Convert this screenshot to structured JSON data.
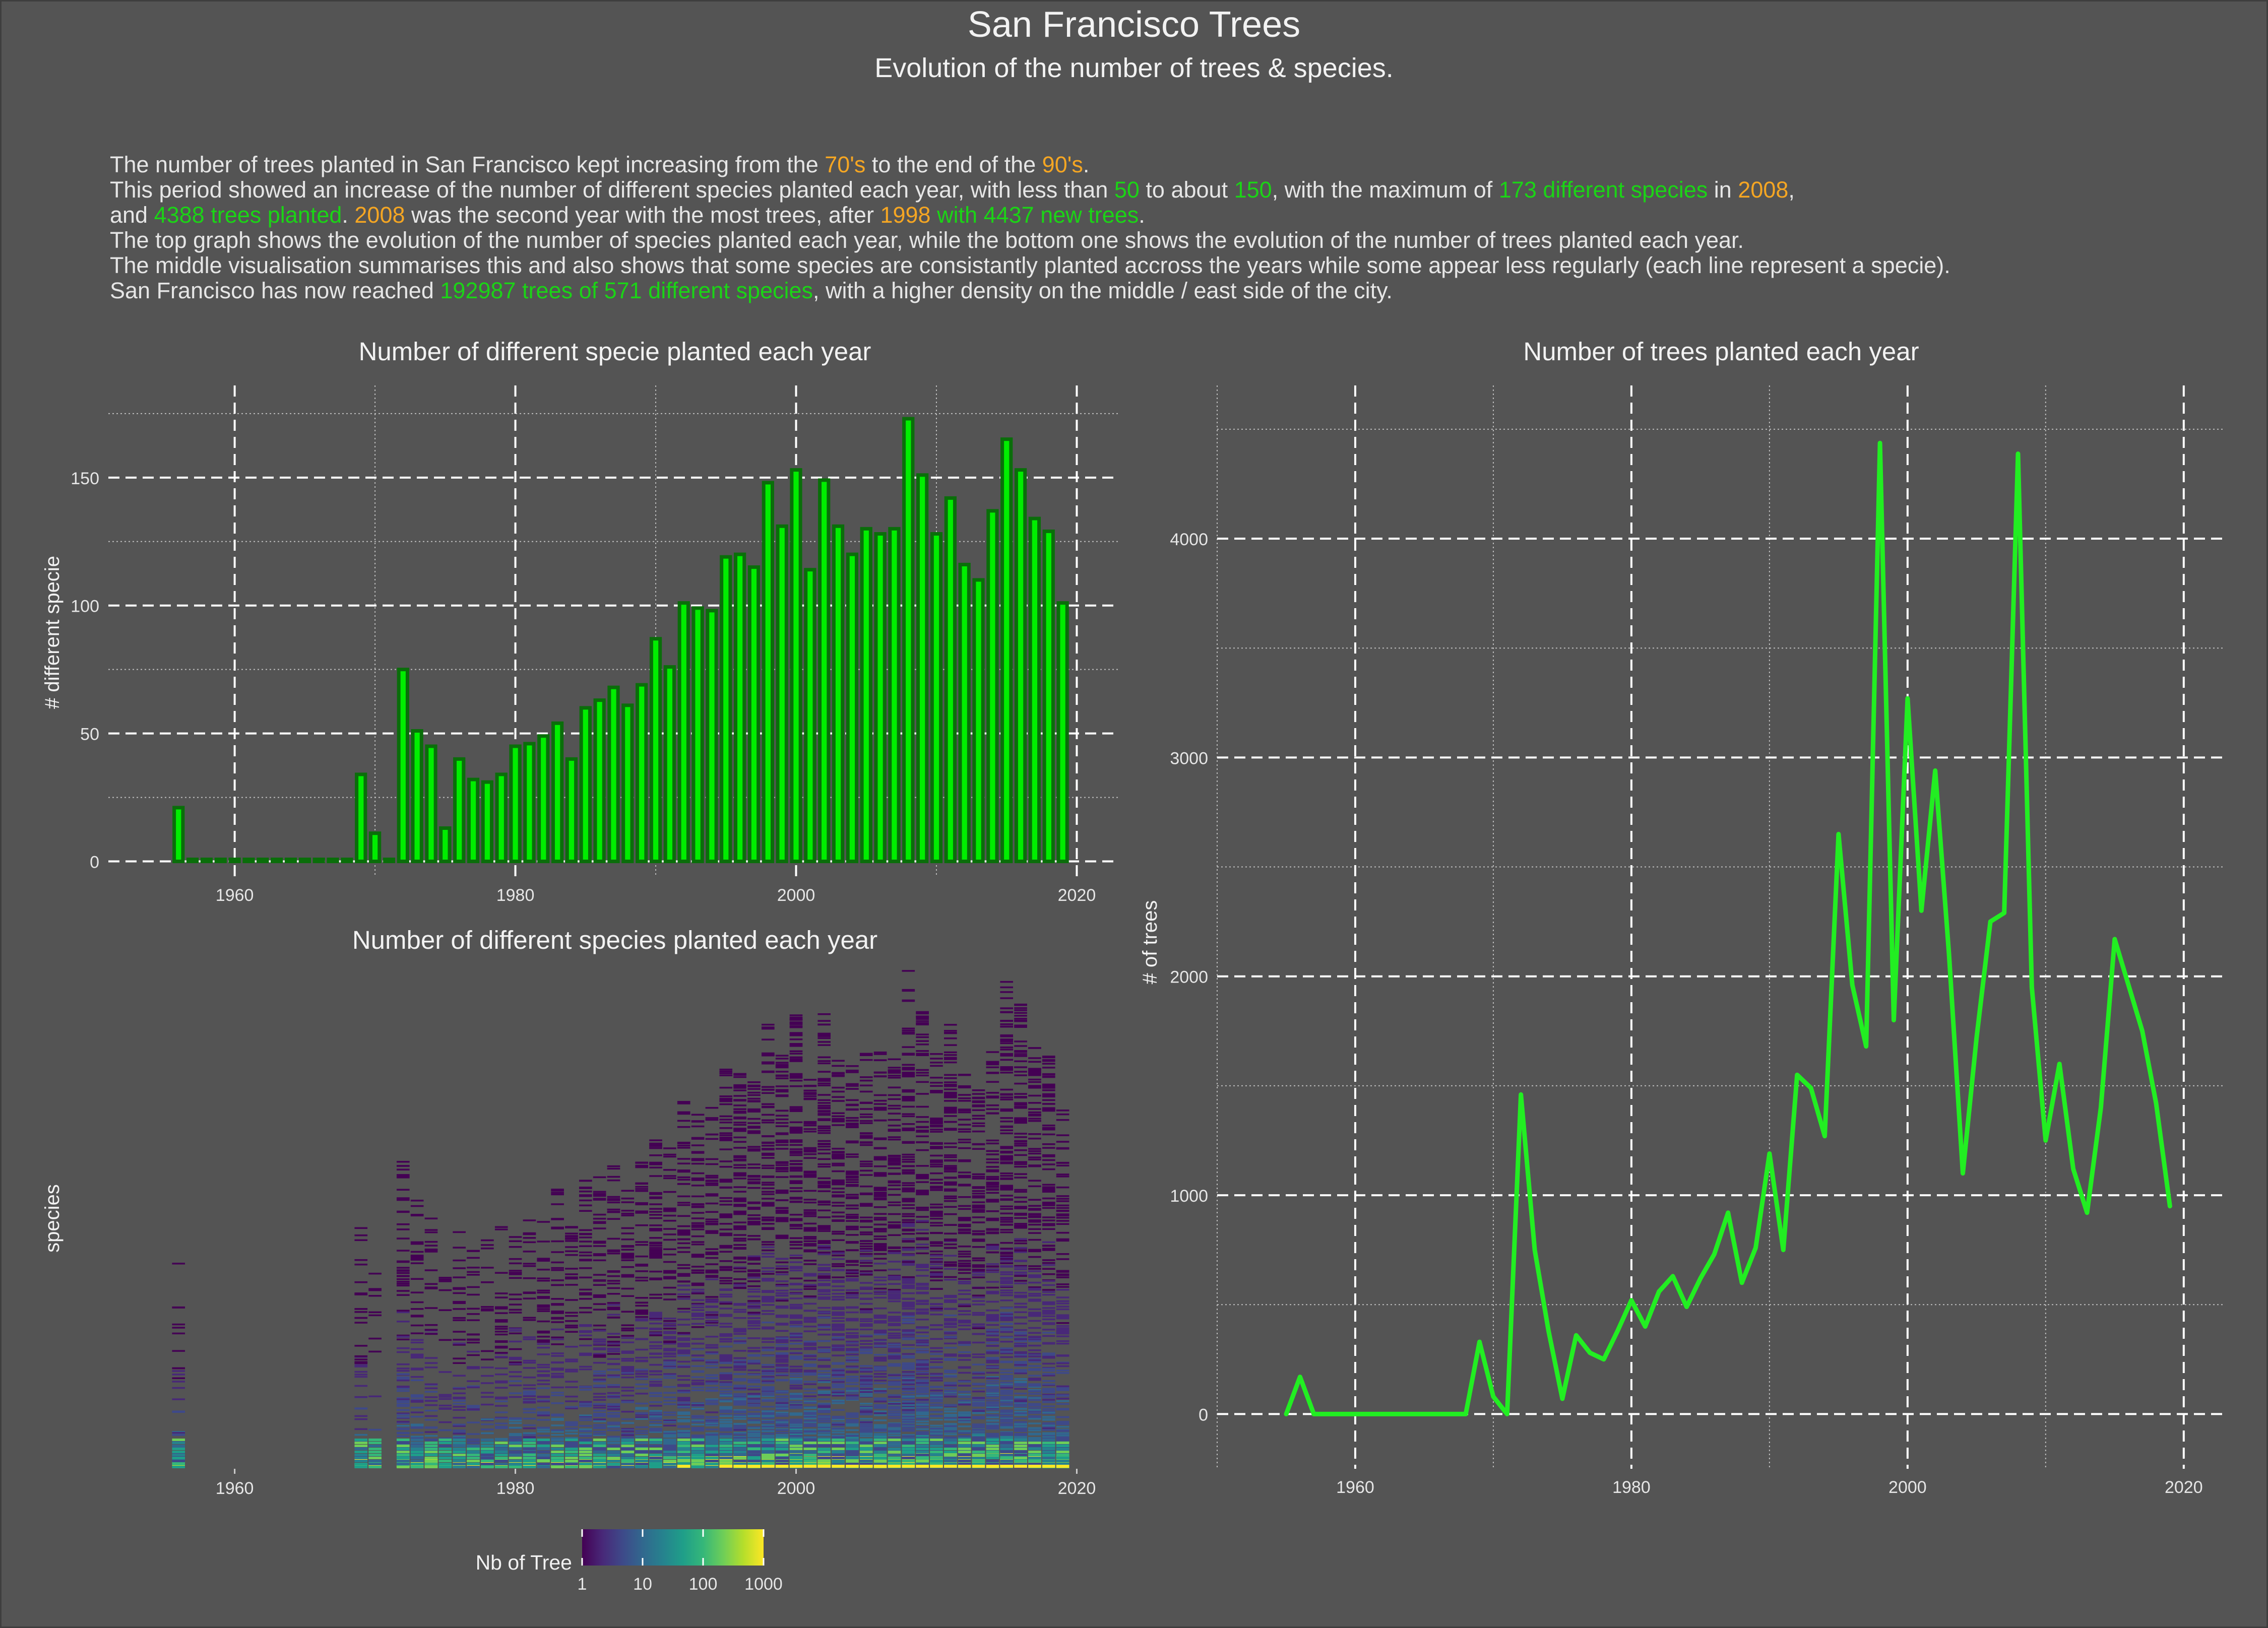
{
  "header": {
    "title": "San Francisco Trees",
    "subtitle": "Evolution of the number of trees & species."
  },
  "description": {
    "lines": [
      [
        [
          "n",
          "The number of trees planted in San Francisco kept increasing from the "
        ],
        [
          "o",
          "70's"
        ],
        [
          "n",
          " to the end of the "
        ],
        [
          "o",
          "90's"
        ],
        [
          "n",
          "."
        ]
      ],
      [
        [
          "n",
          "This period showed an increase of the number of different species planted each year, with less than "
        ],
        [
          "g",
          "50"
        ],
        [
          "n",
          " to about "
        ],
        [
          "g",
          "150"
        ],
        [
          "n",
          ", with the maximum of "
        ],
        [
          "g",
          "173 different species"
        ],
        [
          "n",
          " in "
        ],
        [
          "o",
          "2008"
        ],
        [
          "n",
          ","
        ]
      ],
      [
        [
          "n",
          "and "
        ],
        [
          "g",
          "4388 trees planted"
        ],
        [
          "n",
          ". "
        ],
        [
          "o",
          "2008"
        ],
        [
          "n",
          " was the second year with the most trees, after "
        ],
        [
          "o",
          "1998"
        ],
        [
          "g",
          " with 4437 new trees"
        ],
        [
          "n",
          "."
        ]
      ],
      [
        [
          "n",
          "The top graph shows the evolution of the number of species planted each year, while the bottom one shows the evolution of the number of trees planted each year."
        ]
      ],
      [
        [
          "n",
          "The middle visualisation summarises this and also shows that some species are consistantly planted accross the years while some appear less regularly (each line represent a specie)."
        ]
      ],
      [
        [
          "n",
          "San Francisco has now reached "
        ],
        [
          "g",
          "192987 trees of 571 different species"
        ],
        [
          "n",
          ", with a higher density on the middle / east side of the city."
        ]
      ]
    ]
  },
  "colors": {
    "background": "#545454",
    "bar_fill": "#00ee00",
    "bar_border": "#0a6e0a",
    "line": "#22ee22",
    "highlight_orange": "#f5a623",
    "highlight_green": "#1bd416"
  },
  "chart_data": [
    {
      "id": "species-bar",
      "type": "bar",
      "title": "Number of different specie planted each year",
      "ylabel": "# different specie",
      "xlabel": "",
      "xlim": [
        1951,
        2023
      ],
      "ylim": [
        -6,
        186
      ],
      "xticks": [
        1960,
        1980,
        2000,
        2020
      ],
      "yticks": [
        0,
        50,
        100,
        150
      ],
      "grid": true,
      "bars": [
        [
          1956,
          21
        ],
        [
          1957,
          0
        ],
        [
          1958,
          0
        ],
        [
          1959,
          0
        ],
        [
          1960,
          0
        ],
        [
          1961,
          0
        ],
        [
          1962,
          0
        ],
        [
          1963,
          0
        ],
        [
          1964,
          0
        ],
        [
          1965,
          0
        ],
        [
          1966,
          0
        ],
        [
          1967,
          0
        ],
        [
          1968,
          0
        ],
        [
          1969,
          34
        ],
        [
          1970,
          11
        ],
        [
          1971,
          0
        ],
        [
          1972,
          75
        ],
        [
          1973,
          51
        ],
        [
          1974,
          45
        ],
        [
          1975,
          13
        ],
        [
          1976,
          40
        ],
        [
          1977,
          32
        ],
        [
          1978,
          31
        ],
        [
          1979,
          34
        ],
        [
          1980,
          45
        ],
        [
          1981,
          46
        ],
        [
          1982,
          49
        ],
        [
          1983,
          54
        ],
        [
          1984,
          40
        ],
        [
          1985,
          60
        ],
        [
          1986,
          63
        ],
        [
          1987,
          68
        ],
        [
          1988,
          61
        ],
        [
          1989,
          69
        ],
        [
          1990,
          87
        ],
        [
          1991,
          76
        ],
        [
          1992,
          101
        ],
        [
          1993,
          99
        ],
        [
          1994,
          98
        ],
        [
          1995,
          119
        ],
        [
          1996,
          120
        ],
        [
          1997,
          115
        ],
        [
          1998,
          148
        ],
        [
          1999,
          131
        ],
        [
          2000,
          153
        ],
        [
          2001,
          114
        ],
        [
          2002,
          149
        ],
        [
          2003,
          131
        ],
        [
          2004,
          120
        ],
        [
          2005,
          130
        ],
        [
          2006,
          128
        ],
        [
          2007,
          130
        ],
        [
          2008,
          173
        ],
        [
          2009,
          151
        ],
        [
          2010,
          128
        ],
        [
          2011,
          142
        ],
        [
          2012,
          116
        ],
        [
          2013,
          110
        ],
        [
          2014,
          137
        ],
        [
          2015,
          165
        ],
        [
          2016,
          153
        ],
        [
          2017,
          134
        ],
        [
          2018,
          129
        ],
        [
          2019,
          101
        ]
      ]
    },
    {
      "id": "species-heatmap",
      "type": "heatmap",
      "title": "Number of different species planted each year",
      "ylabel": "species",
      "xlabel": "",
      "xlim": [
        1951,
        2023
      ],
      "xticks": [
        1960,
        1980,
        2000,
        2020
      ],
      "legend": {
        "title": "Nb of Tree",
        "scale": "log10",
        "range": [
          1,
          1000
        ],
        "ticks": [
          1,
          10,
          100,
          1000
        ],
        "palette": [
          "#440154",
          "#482878",
          "#3e4989",
          "#31688e",
          "#26828e",
          "#1f9e89",
          "#35b779",
          "#6ece58",
          "#b5de2b",
          "#fde725"
        ]
      }
    },
    {
      "id": "trees-line",
      "type": "line",
      "title": "Number of trees planted each year",
      "ylabel": "# of trees",
      "xlabel": "",
      "xlim": [
        1950,
        2023
      ],
      "ylim": [
        -250,
        4700
      ],
      "xticks": [
        1960,
        1980,
        2000,
        2020
      ],
      "yticks": [
        0,
        1000,
        2000,
        3000,
        4000
      ],
      "grid": true,
      "points": [
        [
          1955,
          0
        ],
        [
          1956,
          170
        ],
        [
          1957,
          0
        ],
        [
          1958,
          0
        ],
        [
          1959,
          0
        ],
        [
          1960,
          0
        ],
        [
          1961,
          0
        ],
        [
          1962,
          0
        ],
        [
          1963,
          0
        ],
        [
          1964,
          0
        ],
        [
          1965,
          0
        ],
        [
          1966,
          0
        ],
        [
          1967,
          0
        ],
        [
          1968,
          0
        ],
        [
          1969,
          330
        ],
        [
          1970,
          80
        ],
        [
          1971,
          0
        ],
        [
          1972,
          1460
        ],
        [
          1973,
          750
        ],
        [
          1974,
          380
        ],
        [
          1975,
          70
        ],
        [
          1976,
          360
        ],
        [
          1977,
          280
        ],
        [
          1978,
          250
        ],
        [
          1979,
          380
        ],
        [
          1980,
          520
        ],
        [
          1981,
          400
        ],
        [
          1982,
          560
        ],
        [
          1983,
          630
        ],
        [
          1984,
          490
        ],
        [
          1985,
          620
        ],
        [
          1986,
          730
        ],
        [
          1987,
          920
        ],
        [
          1988,
          600
        ],
        [
          1989,
          760
        ],
        [
          1990,
          1190
        ],
        [
          1991,
          750
        ],
        [
          1992,
          1550
        ],
        [
          1993,
          1490
        ],
        [
          1994,
          1270
        ],
        [
          1995,
          2650
        ],
        [
          1996,
          1960
        ],
        [
          1997,
          1680
        ],
        [
          1998,
          4437
        ],
        [
          1999,
          1800
        ],
        [
          2000,
          3270
        ],
        [
          2001,
          2300
        ],
        [
          2002,
          2940
        ],
        [
          2003,
          2100
        ],
        [
          2004,
          1100
        ],
        [
          2005,
          1720
        ],
        [
          2006,
          2250
        ],
        [
          2007,
          2290
        ],
        [
          2008,
          4388
        ],
        [
          2009,
          1950
        ],
        [
          2010,
          1250
        ],
        [
          2011,
          1600
        ],
        [
          2012,
          1120
        ],
        [
          2013,
          920
        ],
        [
          2014,
          1400
        ],
        [
          2015,
          2170
        ],
        [
          2016,
          1960
        ],
        [
          2017,
          1750
        ],
        [
          2018,
          1420
        ],
        [
          2019,
          950
        ]
      ]
    }
  ]
}
